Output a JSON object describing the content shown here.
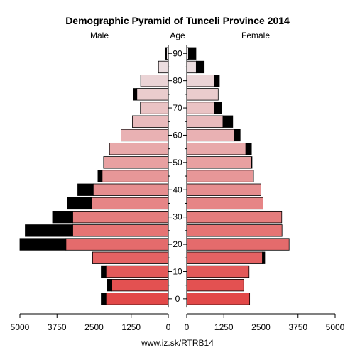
{
  "chart_data": {
    "type": "bar",
    "title": "Demographic Pyramid of Tunceli Province 2014",
    "left_header": "Male",
    "center_header": "Age",
    "right_header": "Female",
    "footer": "www.iz.sk/RTRB14",
    "age_ticks": [
      "90",
      "80",
      "70",
      "60",
      "50",
      "40",
      "30",
      "20",
      "10",
      "0"
    ],
    "x_ticks_left": [
      "5000",
      "3750",
      "2500",
      "1250",
      "0"
    ],
    "x_ticks_right": [
      "0",
      "1250",
      "2500",
      "3750",
      "5000"
    ],
    "xlim": [
      0,
      5000
    ],
    "age_groups": [
      "0-4",
      "5-9",
      "10-14",
      "15-19",
      "20-24",
      "25-29",
      "30-34",
      "35-39",
      "40-44",
      "45-49",
      "50-54",
      "55-59",
      "60-64",
      "65-69",
      "70-74",
      "75-79",
      "80-84",
      "85-89",
      "90+"
    ],
    "male_base": [
      2100,
      1900,
      2100,
      2550,
      3450,
      3220,
      3220,
      2580,
      2530,
      2230,
      2180,
      1980,
      1590,
      1210,
      940,
      1060,
      930,
      330,
      60
    ],
    "male_excess": [
      160,
      160,
      160,
      0,
      1550,
      1600,
      680,
      820,
      520,
      140,
      0,
      0,
      0,
      0,
      0,
      120,
      0,
      0,
      40
    ],
    "female_base": [
      2120,
      1920,
      2100,
      2550,
      3450,
      3210,
      3200,
      2570,
      2500,
      2250,
      2170,
      1990,
      1600,
      1220,
      930,
      1060,
      930,
      320,
      60
    ],
    "female_excess": [
      0,
      0,
      0,
      80,
      0,
      0,
      0,
      0,
      0,
      0,
      30,
      190,
      200,
      330,
      240,
      0,
      170,
      270,
      250
    ]
  }
}
